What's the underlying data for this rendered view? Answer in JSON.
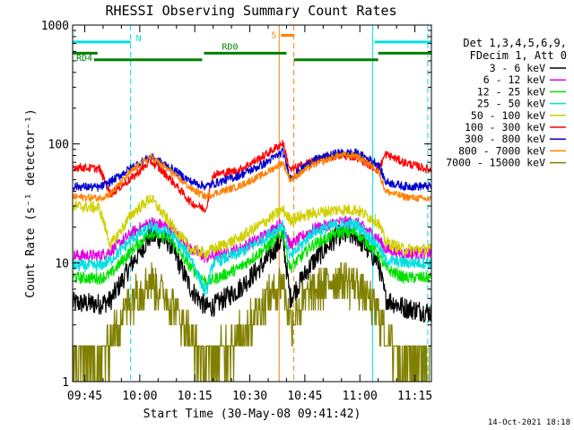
{
  "chart_data": {
    "type": "line",
    "title": "RHESSI Observing Summary Count Rates",
    "xlabel": "Start Time (30-May-08 09:41:42)",
    "ylabel": "Count Rate (s⁻¹ detector⁻¹)",
    "yscale": "log",
    "ylim": [
      1,
      1000
    ],
    "xlim": [
      "09:41:42",
      "11:19:30"
    ],
    "grid": false,
    "legend_placement": "top-right outside",
    "x_ticks": [
      "09:45",
      "10:00",
      "10:15",
      "10:30",
      "10:45",
      "11:00",
      "11:15"
    ],
    "y_ticks": [
      {
        "value": 1,
        "label": "1"
      },
      {
        "value": 10,
        "label": "10"
      },
      {
        "value": 100,
        "label": "100"
      },
      {
        "value": 1000,
        "label": "1000"
      }
    ],
    "legend_header": [
      "Det 1,3,4,5,6,9,",
      "FDecim 1, Att 0"
    ],
    "footer_date": "14-Oct-2021 18:18",
    "time_x": [
      "09:41:42",
      "09:49:00",
      "09:52:00",
      "09:58:00",
      "10:03:00",
      "10:08:00",
      "10:14:00",
      "10:18:00",
      "10:20:00",
      "10:27:00",
      "10:34:00",
      "10:39:00",
      "10:41:00",
      "10:47:00",
      "10:54:00",
      "10:59:00",
      "11:05:00",
      "11:07:00",
      "11:12:00",
      "11:19:30"
    ],
    "series": [
      {
        "name": "3 - 6 keV",
        "color": "#000000",
        "values": [
          4.6,
          4.5,
          4.8,
          10,
          17,
          15,
          6,
          4.2,
          4.3,
          6,
          10,
          16,
          5,
          10,
          17,
          17,
          10,
          5,
          4.2,
          3.8
        ]
      },
      {
        "name": "6 - 12 keV",
        "color": "#e000e0",
        "values": [
          11.5,
          11.5,
          12.5,
          18,
          22,
          20,
          13,
          11,
          11.5,
          13,
          17,
          22,
          14,
          19,
          22,
          22,
          16,
          13,
          12,
          12
        ]
      },
      {
        "name": "12 - 25 keV",
        "color": "#00e000",
        "values": [
          7.5,
          7.4,
          8,
          13,
          18,
          16,
          9,
          7,
          7.2,
          9,
          13,
          18,
          9,
          14,
          18,
          18,
          12,
          9,
          7.5,
          7.5
        ]
      },
      {
        "name": "25 - 50 keV",
        "color": "#00e0e0",
        "values": [
          9.5,
          9.4,
          10.5,
          16,
          20,
          18,
          11,
          5.5,
          10,
          12,
          16,
          21,
          11,
          18,
          21,
          21,
          14,
          10.5,
          10,
          10
        ]
      },
      {
        "name": "50 - 100 keV",
        "color": "#d0d000",
        "values": [
          30,
          29,
          14,
          26,
          35,
          22,
          13,
          12,
          13,
          16,
          22,
          28,
          23,
          26,
          28,
          28,
          22,
          15,
          13,
          13
        ]
      },
      {
        "name": "100 - 300 keV",
        "color": "#ff0000",
        "values": [
          64,
          62,
          38,
          52,
          72,
          52,
          32,
          28,
          55,
          60,
          80,
          102,
          60,
          72,
          80,
          78,
          60,
          82,
          70,
          60
        ]
      },
      {
        "name": "300 - 800 keV",
        "color": "#0000d0",
        "values": [
          44,
          43,
          48,
          64,
          78,
          64,
          48,
          44,
          46,
          54,
          68,
          86,
          52,
          72,
          84,
          84,
          68,
          48,
          44,
          44
        ]
      },
      {
        "name": "800 - 7000 keV",
        "color": "#ff8000",
        "values": [
          36,
          35,
          38,
          60,
          78,
          60,
          42,
          36,
          38,
          44,
          56,
          70,
          50,
          66,
          80,
          80,
          60,
          40,
          36,
          34
        ]
      },
      {
        "name": "7000 - 15000 keV",
        "color": "#808000",
        "values": [
          1.6,
          1.5,
          2.2,
          5.5,
          7.5,
          5,
          2.5,
          1.5,
          1.6,
          2.5,
          5,
          7,
          3.5,
          6,
          7.5,
          7,
          4,
          2.4,
          1.6,
          1.6
        ]
      }
    ],
    "annotations": [
      {
        "label": "N",
        "color": "#00e0e0",
        "start": "09:41:42",
        "end": "09:57:30",
        "level": 720
      },
      {
        "label": "",
        "color": "#00e0e0",
        "start": "11:04:00",
        "end": "11:19:30",
        "level": 720
      },
      {
        "label": "RD0",
        "color": "#008000",
        "start": "09:41:42",
        "end": "09:48:30",
        "level": 580
      },
      {
        "label": "RD0",
        "color": "#008000",
        "start": "10:17:30",
        "end": "10:40:00",
        "level": 580
      },
      {
        "label": "RD0",
        "color": "#008000",
        "start": "11:05:00",
        "end": "11:19:30",
        "level": 580
      },
      {
        "label": "RD4",
        "color": "#008000",
        "start": "09:47:30",
        "end": "10:17:00",
        "level": 510
      },
      {
        "label": "RD4",
        "color": "#008000",
        "start": "10:42:00",
        "end": "11:05:00",
        "level": 510
      },
      {
        "label": "S",
        "color": "#ff8000",
        "start": "10:38:30",
        "end": "10:42:00",
        "level": 820
      }
    ],
    "solid_vlines": [
      {
        "color": "#00e0e0",
        "time": "09:41:42"
      },
      {
        "color": "#00e0e0",
        "time": "11:03:30"
      },
      {
        "color": "#ff8000",
        "time": "10:38:00"
      }
    ],
    "dashed_vlines": [
      {
        "color": "#00e0e0",
        "time": "09:57:30"
      },
      {
        "color": "#00e0e0",
        "time": "11:18:30"
      },
      {
        "color": "#ff8000",
        "time": "10:42:00"
      }
    ]
  }
}
